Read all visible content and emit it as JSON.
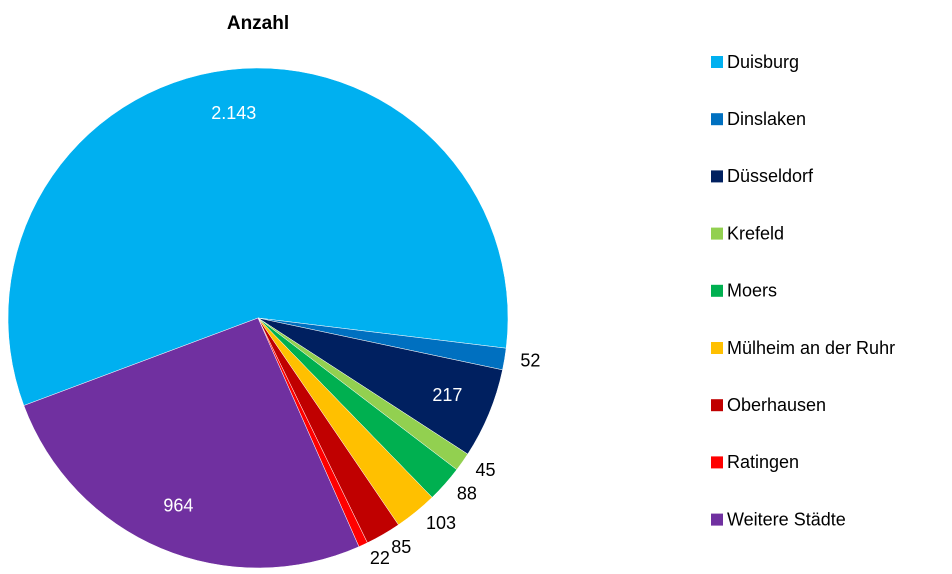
{
  "chart_data": {
    "type": "pie",
    "title": "Anzahl",
    "categories": [
      "Duisburg",
      "Dinslaken",
      "Düsseldorf",
      "Krefeld",
      "Moers",
      "Mülheim an der Ruhr",
      "Oberhausen",
      "Ratingen",
      "Weitere Städte"
    ],
    "values": [
      2143,
      52,
      217,
      45,
      88,
      103,
      85,
      22,
      964
    ],
    "value_labels": [
      "2.143",
      "52",
      "217",
      "45",
      "88",
      "103",
      "85",
      "22",
      "964"
    ],
    "colors": [
      "#00b0f0",
      "#0070c0",
      "#002060",
      "#92d050",
      "#00b050",
      "#ffc000",
      "#c00000",
      "#ff0000",
      "#7030a0"
    ],
    "legend": "right"
  }
}
